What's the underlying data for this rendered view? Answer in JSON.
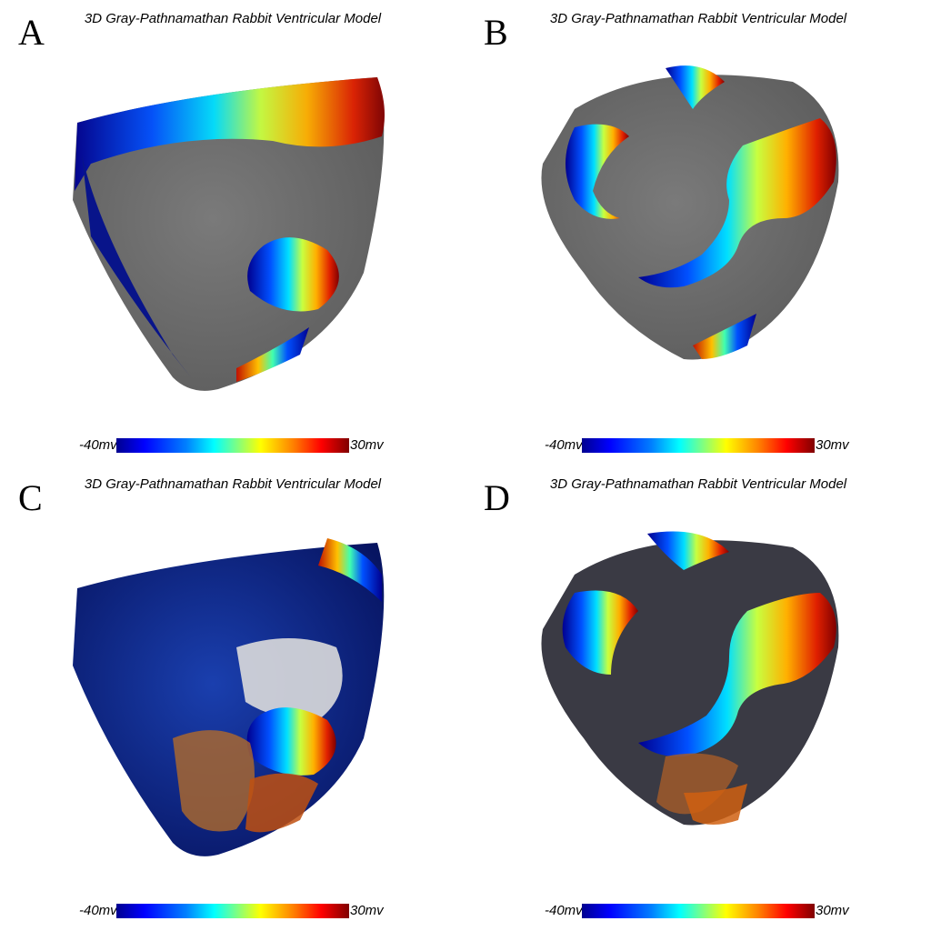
{
  "colors": {
    "gray_tissue": "#6e6e6e",
    "scale_low": "#00008f",
    "scale_high": "#800000"
  },
  "panels": [
    {
      "letter": "A",
      "title": "3D Gray-Pathnamathan Rabbit Ventricular Model",
      "min_label": "-40mv",
      "max_label": "30mv"
    },
    {
      "letter": "B",
      "title": "3D Gray-Pathnamathan Rabbit Ventricular Model",
      "min_label": "-40mv",
      "max_label": "30mv"
    },
    {
      "letter": "C",
      "title": "3D Gray-Pathnamathan Rabbit Ventricular Model",
      "min_label": "-40mv",
      "max_label": "30mv"
    },
    {
      "letter": "D",
      "title": "3D Gray-Pathnamathan Rabbit Ventricular Model",
      "min_label": "-40mv",
      "max_label": "30mv"
    }
  ]
}
